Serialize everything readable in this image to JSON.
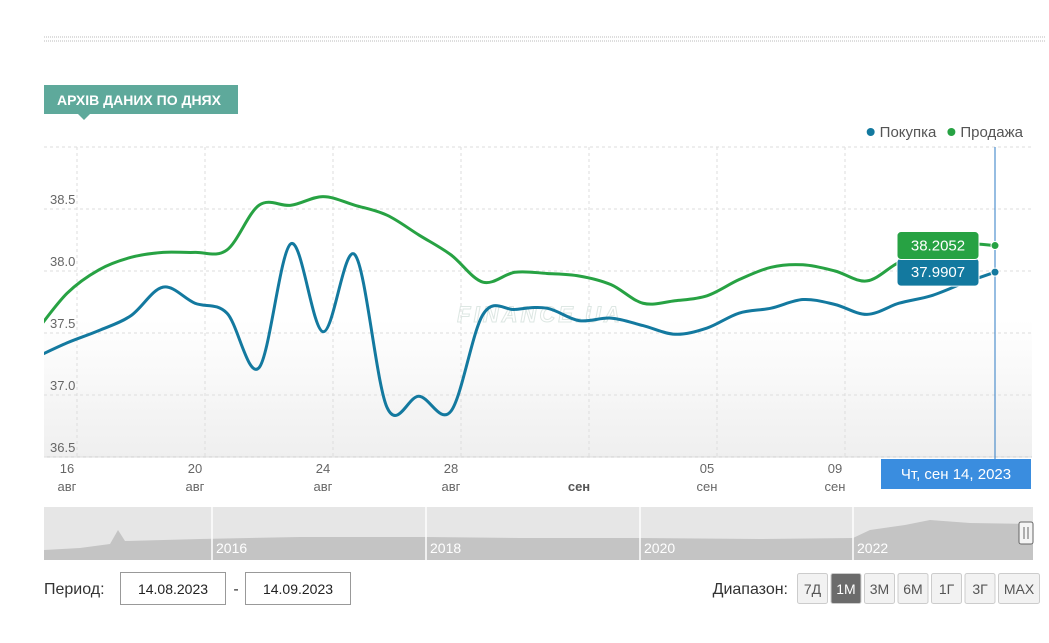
{
  "header": {
    "title": "АРХІВ ДАНИХ ПО ДНЯХ"
  },
  "chart_data": {
    "type": "line",
    "x": [
      "2023-08-15",
      "2023-08-16",
      "2023-08-17",
      "2023-08-18",
      "2023-08-19",
      "2023-08-20",
      "2023-08-21",
      "2023-08-22",
      "2023-08-23",
      "2023-08-24",
      "2023-08-25",
      "2023-08-26",
      "2023-08-27",
      "2023-08-28",
      "2023-08-29",
      "2023-08-30",
      "2023-08-31",
      "2023-09-01",
      "2023-09-02",
      "2023-09-03",
      "2023-09-04",
      "2023-09-05",
      "2023-09-06",
      "2023-09-07",
      "2023-09-08",
      "2023-09-09",
      "2023-09-10",
      "2023-09-11",
      "2023-09-12",
      "2023-09-13",
      "2023-09-14"
    ],
    "series": [
      {
        "name": "Покупка",
        "color": "#13799f",
        "values": [
          37.3,
          37.42,
          37.52,
          37.64,
          37.87,
          37.74,
          37.66,
          37.22,
          38.22,
          37.51,
          38.13,
          36.9,
          36.99,
          36.87,
          37.65,
          37.69,
          37.7,
          37.6,
          37.62,
          37.56,
          37.49,
          37.54,
          37.66,
          37.7,
          37.77,
          37.73,
          37.65,
          37.74,
          37.8,
          37.9,
          37.9907
        ]
      },
      {
        "name": "Продажа",
        "color": "#27a243",
        "values": [
          37.5,
          37.82,
          38.01,
          38.11,
          38.15,
          38.15,
          38.17,
          38.53,
          38.53,
          38.6,
          38.53,
          38.45,
          38.29,
          38.13,
          37.91,
          37.99,
          37.98,
          37.96,
          37.89,
          37.74,
          37.76,
          37.8,
          37.93,
          38.03,
          38.05,
          38.0,
          37.92,
          38.07,
          38.17,
          38.22,
          38.2052
        ]
      }
    ],
    "xlim": [
      "2023-08-15",
      "2023-09-15"
    ],
    "xticks": [
      {
        "value": "2023-08-16",
        "label": "16 авг"
      },
      {
        "value": "2023-08-20",
        "label": "20 авг"
      },
      {
        "value": "2023-08-24",
        "label": "24 авг"
      },
      {
        "value": "2023-08-28",
        "label": "28 авг"
      },
      {
        "value": "2023-09-01",
        "label": "сен"
      },
      {
        "value": "2023-09-05",
        "label": "05 сен"
      },
      {
        "value": "2023-09-09",
        "label": "09 сен"
      }
    ],
    "ylim": [
      36.5,
      39.0
    ],
    "yticks": [
      36.5,
      {
        "value": 37,
        "label": "37.0"
      },
      37.5,
      {
        "value": 38,
        "label": "38.0"
      },
      38.5
    ],
    "grid": true,
    "legend": "top-right",
    "tooltip": "Чт, сен 14, 2023",
    "watermark": "FINANCE.UA"
  },
  "navigator": {
    "labels": [
      "2016",
      "2018",
      "2020",
      "2022"
    ]
  },
  "controls": {
    "period_label": "Период:",
    "from": "14.08.2023",
    "separator": "-",
    "to": "14.09.2023",
    "range_label": "Диапазон:",
    "ranges": [
      "7Д",
      "1М",
      "3М",
      "6М",
      "1Г",
      "3Г",
      "MAX"
    ],
    "active_range": 1
  }
}
